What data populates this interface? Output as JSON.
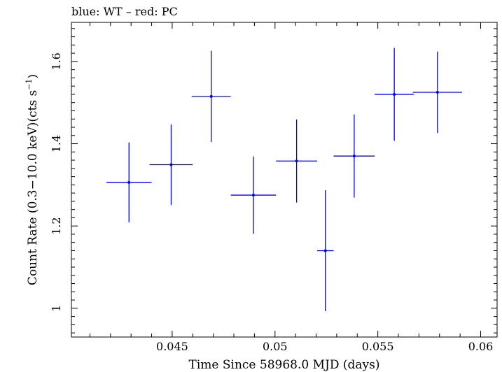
{
  "chart_data": {
    "type": "scatter",
    "title": "blue: WT – red: PC",
    "xlabel": "Time Since 58968.0 MJD (days)",
    "ylabel_parts": {
      "prefix": "Count Rate (0.3−10.0 keV)(cts s",
      "superscript": "−1",
      "suffix": ")"
    },
    "xlim": [
      0.0401,
      0.0608
    ],
    "ylim": [
      0.93,
      1.695
    ],
    "x_ticks": [
      {
        "value": 0.045,
        "label": "0.045"
      },
      {
        "value": 0.05,
        "label": "0.05"
      },
      {
        "value": 0.055,
        "label": "0.055"
      },
      {
        "value": 0.06,
        "label": "0.06"
      }
    ],
    "y_ticks": [
      {
        "value": 1.0,
        "label": "1"
      },
      {
        "value": 1.2,
        "label": "1.2"
      },
      {
        "value": 1.4,
        "label": "1.4"
      },
      {
        "value": 1.6,
        "label": "1.6"
      }
    ],
    "series": [
      {
        "color": "#0000ff",
        "points": [
          {
            "x": 0.0429,
            "y": 1.306,
            "xerr": 0.0011,
            "yerr": 0.097
          },
          {
            "x": 0.04495,
            "y": 1.349,
            "xerr": 0.00105,
            "yerr": 0.098
          },
          {
            "x": 0.0469,
            "y": 1.515,
            "xerr": 0.00095,
            "yerr": 0.111
          },
          {
            "x": 0.04895,
            "y": 1.275,
            "xerr": 0.0011,
            "yerr": 0.094
          },
          {
            "x": 0.05105,
            "y": 1.358,
            "xerr": 0.001,
            "yerr": 0.101
          },
          {
            "x": 0.05245,
            "y": 1.14,
            "xerr": 0.0004,
            "yerr": 0.147
          },
          {
            "x": 0.05385,
            "y": 1.37,
            "xerr": 0.001,
            "yerr": 0.101
          },
          {
            "x": 0.0558,
            "y": 1.52,
            "xerr": 0.00095,
            "yerr": 0.113
          },
          {
            "x": 0.0579,
            "y": 1.525,
            "xerr": 0.0012,
            "yerr": 0.099
          }
        ]
      }
    ]
  }
}
